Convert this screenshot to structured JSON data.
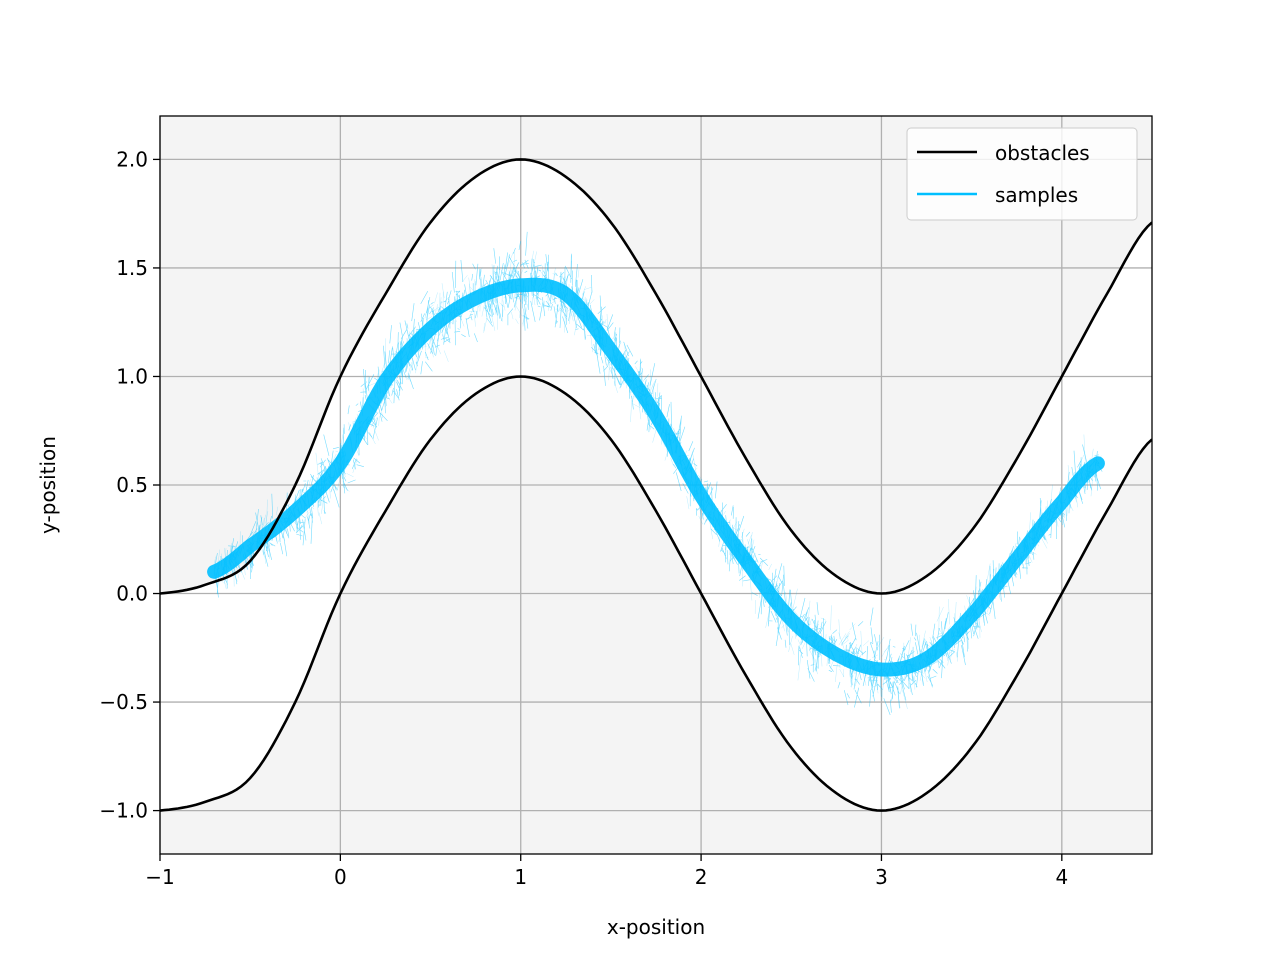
{
  "chart_data": {
    "type": "line",
    "title": "",
    "xlabel": "x-position",
    "ylabel": "y-position",
    "xlim": [
      -1,
      4.5
    ],
    "ylim": [
      -1.2,
      2.2
    ],
    "xticks": [
      -1,
      0,
      1,
      2,
      3,
      4
    ],
    "xtick_labels": [
      "−1",
      "0",
      "1",
      "2",
      "3",
      "4"
    ],
    "yticks": [
      -1.0,
      -0.5,
      0.0,
      0.5,
      1.0,
      1.5,
      2.0
    ],
    "ytick_labels": [
      "−1.0",
      "−0.5",
      "0.0",
      "0.5",
      "1.0",
      "1.5",
      "2.0"
    ],
    "grid": true,
    "legend_position": "top-right",
    "background_regions": "light gray (#f4f4f4) outside the corridor between the two obstacle curves, white inside",
    "series": [
      {
        "name": "obstacles",
        "color": "#000000",
        "kind": "curve",
        "x": [
          -1.0,
          -0.75,
          -0.5,
          -0.25,
          0.0,
          0.25,
          0.5,
          0.75,
          1.0,
          1.25,
          1.5,
          1.75,
          2.0,
          2.25,
          2.5,
          2.75,
          3.0,
          3.25,
          3.5,
          3.75,
          4.0,
          4.25,
          4.5
        ],
        "y": [
          0.0,
          0.04,
          0.15,
          0.5,
          1.0,
          1.38,
          1.71,
          1.92,
          2.0,
          1.92,
          1.71,
          1.38,
          1.0,
          0.62,
          0.29,
          0.08,
          0.0,
          0.08,
          0.29,
          0.62,
          1.0,
          1.38,
          1.71
        ]
      },
      {
        "name": "",
        "color": "#000000",
        "kind": "curve",
        "x": [
          -1.0,
          -0.75,
          -0.5,
          -0.25,
          0.0,
          0.25,
          0.5,
          0.75,
          1.0,
          1.25,
          1.5,
          1.75,
          2.0,
          2.25,
          2.5,
          2.75,
          3.0,
          3.25,
          3.5,
          3.75,
          4.0,
          4.25,
          4.5
        ],
        "y": [
          -1.0,
          -0.96,
          -0.85,
          -0.5,
          0.0,
          0.38,
          0.71,
          0.92,
          1.0,
          0.92,
          0.71,
          0.38,
          0.0,
          -0.38,
          -0.71,
          -0.92,
          -1.0,
          -0.92,
          -0.71,
          -0.38,
          0.0,
          0.38,
          0.71
        ]
      },
      {
        "name": "samples",
        "color": "#00bfff",
        "kind": "sample-band",
        "x": [
          -0.7,
          -0.5,
          -0.25,
          0.0,
          0.25,
          0.5,
          0.75,
          1.0,
          1.25,
          1.5,
          1.75,
          2.0,
          2.25,
          2.5,
          2.75,
          3.0,
          3.25,
          3.5,
          3.75,
          4.0,
          4.2
        ],
        "y": [
          0.1,
          0.22,
          0.38,
          0.6,
          0.98,
          1.22,
          1.36,
          1.42,
          1.38,
          1.12,
          0.82,
          0.45,
          0.15,
          -0.12,
          -0.28,
          -0.35,
          -0.3,
          -0.1,
          0.16,
          0.42,
          0.6
        ],
        "spread": [
          0.04,
          0.06,
          0.1,
          0.16,
          0.15,
          0.14,
          0.14,
          0.16,
          0.14,
          0.12,
          0.12,
          0.12,
          0.12,
          0.13,
          0.14,
          0.14,
          0.12,
          0.08,
          0.07,
          0.07,
          0.06
        ]
      }
    ]
  }
}
